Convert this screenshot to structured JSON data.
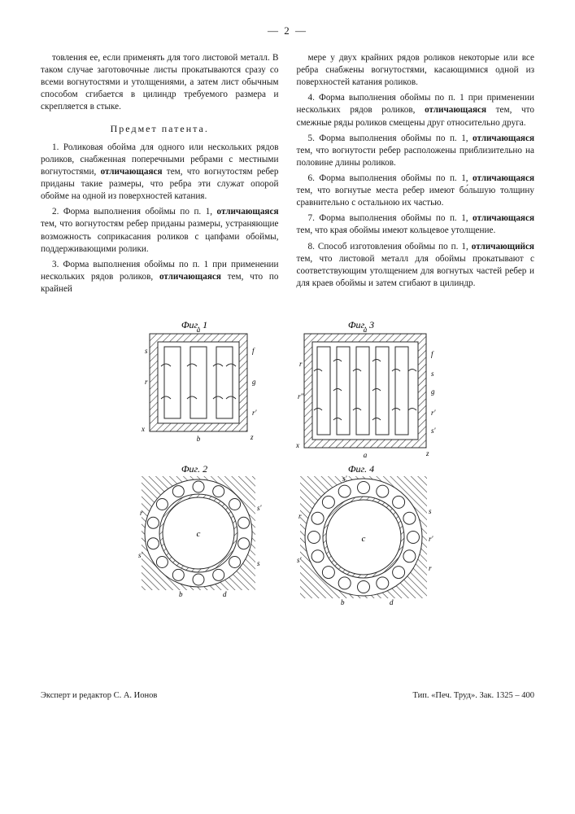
{
  "page_number": "— 2 —",
  "col_left": {
    "p1": "товления ее, если применять для того листовой металл. В таком случае заготовочные листы прокатываются сразу со всеми вогнутостями и утолщениями, а затем лист обычным способом сгибается в цилиндр требуемого размера и скрепляется в стыке.",
    "heading": "Предмет патента.",
    "p2_a": "1. Роликовая обойма для одного или нескольких рядов роликов, снабженная поперечными ребрами с местными вогнутостями, ",
    "p2_b": "отличающаяся",
    "p2_c": " тем, что вогнутостям ребер приданы такие размеры, что ребра эти служат опорой обойме на одной из поверхностей катания.",
    "p3_a": "2. Форма выполнения обоймы по п. 1, ",
    "p3_b": "отличающаяся",
    "p3_c": " тем, что вогнутостям ребер приданы размеры, устраняющие возможность соприкасания роликов с цапфами обоймы, поддерживающими ролики.",
    "p4_a": "3. Форма выполнения обоймы по п. 1 при применении нескольких рядов роликов, ",
    "p4_b": "отличающаяся",
    "p4_c": " тем, что по крайней"
  },
  "col_right": {
    "p1": "мере у двух крайних рядов роликов некоторые или все ребра снабжены вогнутостями, касающимися одной из поверхностей катания роликов.",
    "p2_a": "4. Форма выполнения обоймы по п. 1 при применении нескольких рядов роликов, ",
    "p2_b": "отличающаяся",
    "p2_c": " тем, что смежные ряды роликов смещены друг относительно друга.",
    "p3_a": "5. Форма выполнения обоймы по п. 1, ",
    "p3_b": "отличающаяся",
    "p3_c": " тем, что вогнутости ребер расположены приблизительно на половине длины роликов.",
    "p4_a": "6. Форма выполнения обоймы по п. 1, ",
    "p4_b": "отличающаяся",
    "p4_c": " тем, что вогнутые места ребер имеют бо́льшую толщину сравнительно с остальною их частью.",
    "p5_a": "7. Форма выполнения обоймы по п. 1, ",
    "p5_b": "отличающаяся",
    "p5_c": " тем, что края обоймы имеют кольцевое утолщение.",
    "p6_a": "8. Способ изготовления обоймы по п. 1, ",
    "p6_b": "отличающийся",
    "p6_c": " тем, что листовой металл для обоймы прокатывают с соответствующим утолщением для вогнутых частей ребер и для краев обоймы и затем сгибают в цилиндр."
  },
  "figures": {
    "labels": {
      "f1": "Фиг. 1",
      "f2": "Фиг. 2",
      "f3": "Фиг. 3",
      "f4": "Фиг. 4"
    },
    "refs": [
      "a",
      "b",
      "c",
      "d",
      "f",
      "g",
      "r",
      "r'",
      "r''",
      "s",
      "s'",
      "x",
      "z"
    ],
    "stroke": "#2a2a2a",
    "hatch": "#3a3a3a",
    "bg": "#ffffff",
    "font_size_label": 12,
    "font_size_ref": 9
  },
  "footer": {
    "left": "Эксперт и редактор С. А. Ионов",
    "right": "Тип. «Печ. Труд». Зак. 1325 – 400"
  }
}
